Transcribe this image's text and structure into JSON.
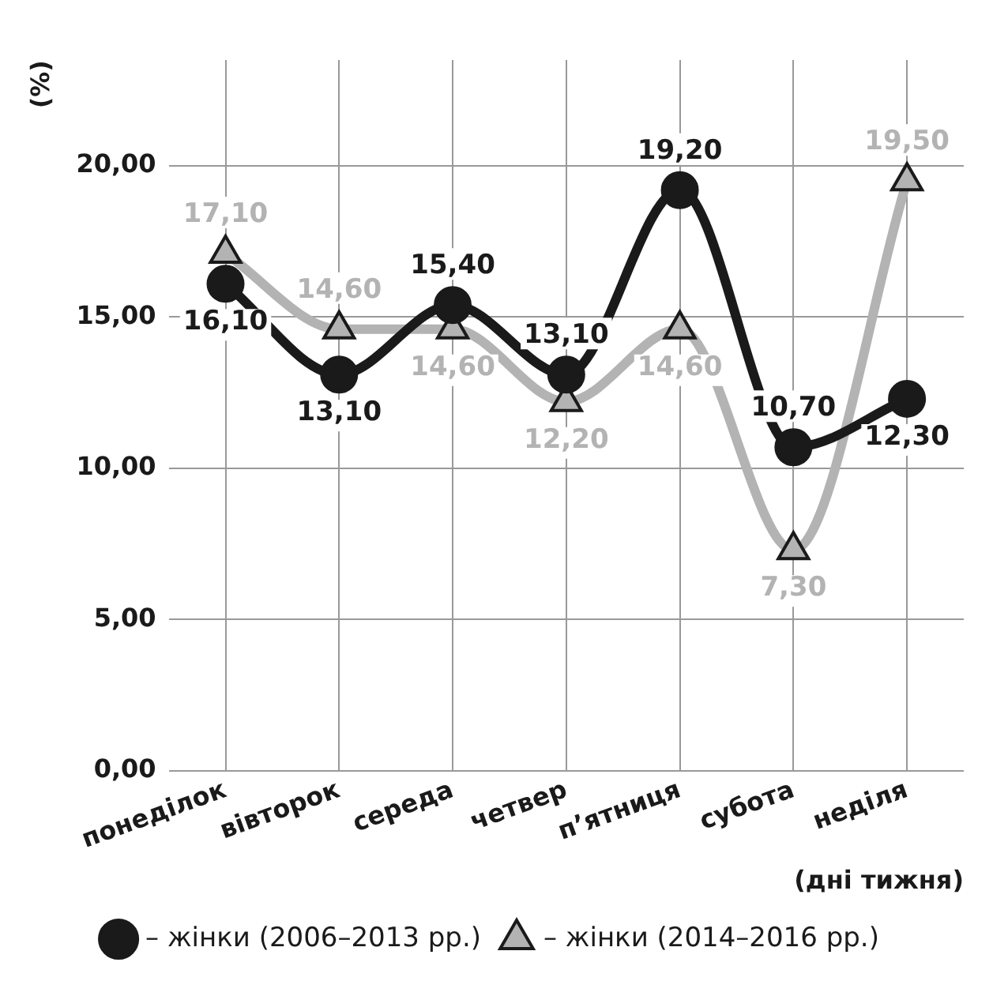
{
  "chart_data": {
    "type": "line",
    "xlabel": "(дні тижня)",
    "ylabel": "(%)",
    "categories": [
      "понеділок",
      "вівторок",
      "середа",
      "четвер",
      "п’ятниця",
      "субота",
      "неділя"
    ],
    "series": [
      {
        "name": "– жінки (2006–2013 рр.)",
        "color": "#1a1a1a",
        "marker": "circle",
        "values": [
          16.1,
          13.1,
          15.4,
          13.1,
          19.2,
          10.7,
          12.3
        ],
        "value_labels": [
          "16,10",
          "13,10",
          "15,40",
          "13,10",
          "19,20",
          "10,70",
          "12,30"
        ]
      },
      {
        "name": "– жінки (2014–2016 рр.)",
        "color": "#b3b3b3",
        "marker": "triangle",
        "values": [
          17.1,
          14.6,
          14.6,
          12.2,
          14.6,
          7.3,
          19.5
        ],
        "value_labels": [
          "17,10",
          "14,60",
          "14,60",
          "12,20",
          "14,60",
          "7,30",
          "19,50"
        ]
      }
    ],
    "ylim": [
      0,
      23.5
    ],
    "yticks": [
      {
        "value": 0,
        "label": "0,00"
      },
      {
        "value": 5,
        "label": "5,00"
      },
      {
        "value": 10,
        "label": "10,00"
      },
      {
        "value": 15,
        "label": "15,00"
      },
      {
        "value": 20,
        "label": "20,00"
      }
    ],
    "grid": true,
    "legend": "bottom"
  }
}
